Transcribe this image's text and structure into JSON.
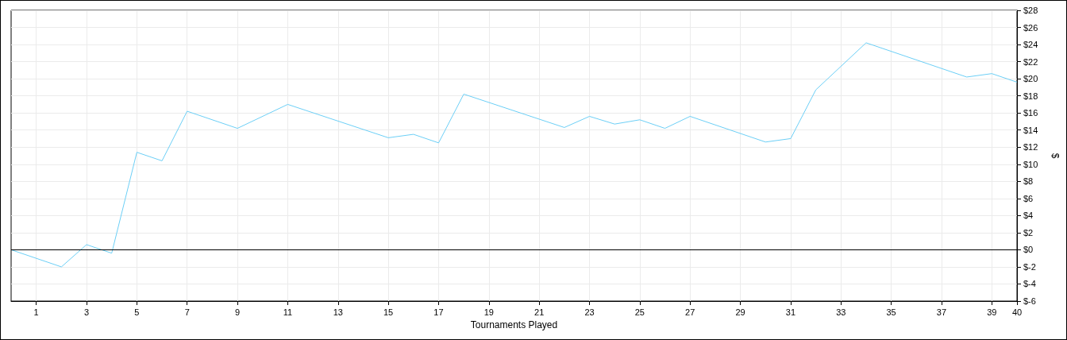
{
  "chart_data": {
    "type": "line",
    "xlabel": "Tournaments Played",
    "ylabel": "$",
    "x": [
      0,
      2,
      3,
      4,
      5,
      6,
      7,
      9,
      11,
      15,
      16,
      17,
      18,
      22,
      23,
      24,
      25,
      26,
      27,
      30,
      31,
      32,
      34,
      38,
      39,
      40
    ],
    "series": [
      {
        "color": "#6ccff6",
        "values": [
          0,
          -2,
          0.6,
          -0.4,
          11.4,
          10.4,
          16.2,
          14.2,
          17,
          13.1,
          13.5,
          12.5,
          18.2,
          14.3,
          15.6,
          14.7,
          15.2,
          14.2,
          15.6,
          12.6,
          13,
          18.7,
          24.2,
          20.2,
          20.6,
          19.6
        ]
      }
    ],
    "xlim": [
      0,
      40
    ],
    "xticks": [
      1,
      3,
      5,
      7,
      9,
      11,
      13,
      15,
      17,
      19,
      21,
      23,
      25,
      27,
      29,
      31,
      33,
      35,
      37,
      39,
      40
    ],
    "ylim": [
      -6,
      28
    ],
    "yticks": [
      {
        "value": -6,
        "label": "$-6"
      },
      {
        "value": -4,
        "label": "$-4"
      },
      {
        "value": -2,
        "label": "$-2"
      },
      {
        "value": 0,
        "label": "$0"
      },
      {
        "value": 2,
        "label": "$2"
      },
      {
        "value": 4,
        "label": "$4"
      },
      {
        "value": 6,
        "label": "$6"
      },
      {
        "value": 8,
        "label": "$8"
      },
      {
        "value": 10,
        "label": "$10"
      },
      {
        "value": 12,
        "label": "$12"
      },
      {
        "value": 14,
        "label": "$14"
      },
      {
        "value": 16,
        "label": "$16"
      },
      {
        "value": 18,
        "label": "$18"
      },
      {
        "value": 20,
        "label": "$20"
      },
      {
        "value": 22,
        "label": "$22"
      },
      {
        "value": 24,
        "label": "$24"
      },
      {
        "value": 26,
        "label": "$26"
      },
      {
        "value": 28,
        "label": "$28"
      }
    ],
    "ref_lines": [
      {
        "axis": "y",
        "value": 0,
        "color": "#000000"
      }
    ],
    "grid": true,
    "marker": "none",
    "line_style": "solid"
  }
}
